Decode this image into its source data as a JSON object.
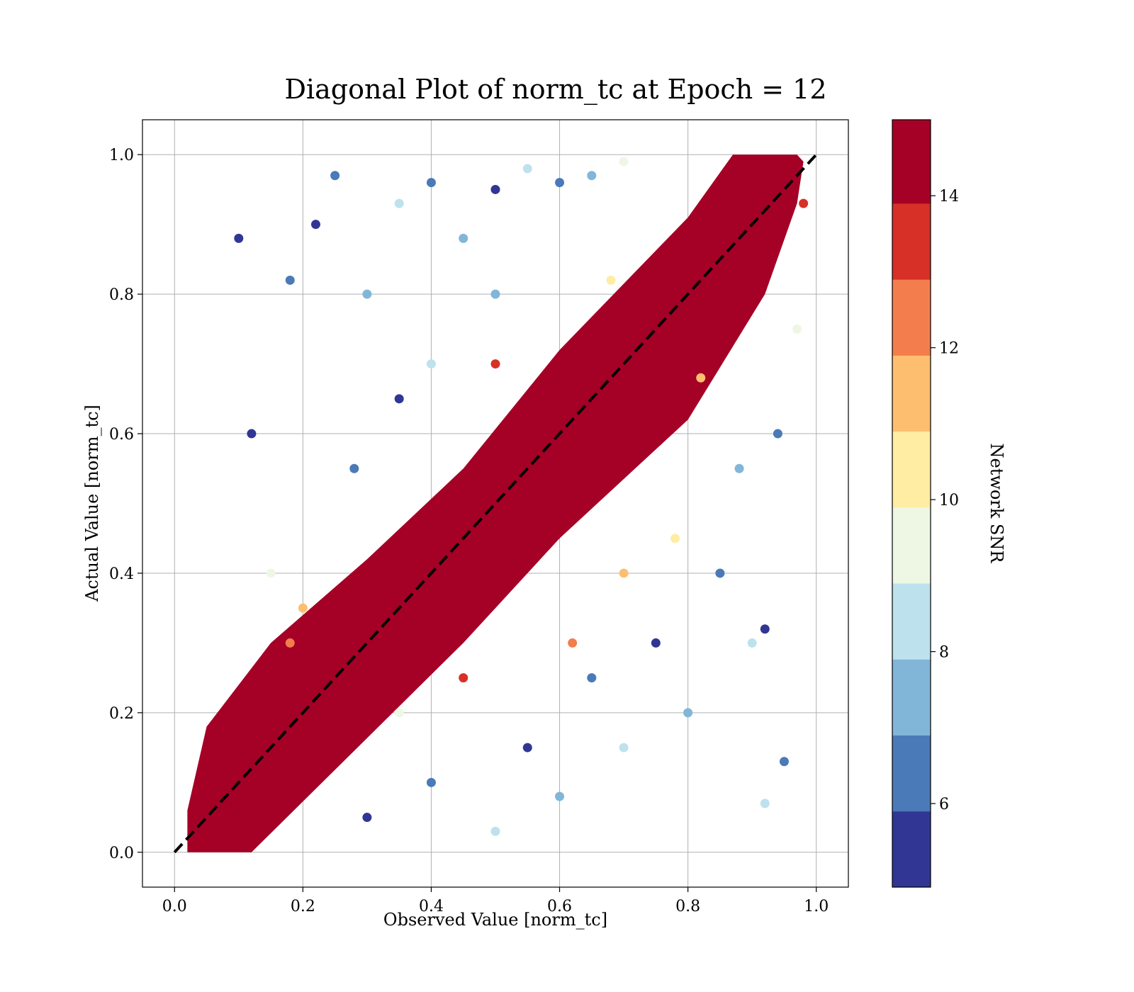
{
  "chart_data": {
    "type": "scatter",
    "title": "Diagonal Plot of norm_tc at Epoch = 12",
    "xlabel": "Observed Value [norm_tc]",
    "ylabel": "Actual Value [norm_tc]",
    "xlim": [
      -0.05,
      1.05
    ],
    "ylim": [
      -0.05,
      1.05
    ],
    "xticks": [
      "0.0",
      "0.2",
      "0.4",
      "0.6",
      "0.8",
      "1.0"
    ],
    "yticks": [
      "0.0",
      "0.2",
      "0.4",
      "0.6",
      "0.8",
      "1.0"
    ],
    "grid": true,
    "reference_line": {
      "style": "dashed",
      "color": "#000000",
      "from": [
        0,
        0
      ],
      "to": [
        1,
        1
      ]
    },
    "point_color_scale": "#page-data.colorbar",
    "points": [
      [
        0.05,
        0.03,
        15
      ],
      [
        0.1,
        0.08,
        15
      ],
      [
        0.15,
        0.14,
        15
      ],
      [
        0.2,
        0.19,
        15
      ],
      [
        0.25,
        0.24,
        15
      ],
      [
        0.3,
        0.3,
        15
      ],
      [
        0.35,
        0.34,
        15
      ],
      [
        0.4,
        0.41,
        15
      ],
      [
        0.45,
        0.44,
        15
      ],
      [
        0.5,
        0.5,
        15
      ],
      [
        0.55,
        0.56,
        15
      ],
      [
        0.6,
        0.59,
        15
      ],
      [
        0.65,
        0.65,
        15
      ],
      [
        0.7,
        0.7,
        15
      ],
      [
        0.75,
        0.74,
        15
      ],
      [
        0.8,
        0.81,
        15
      ],
      [
        0.85,
        0.85,
        15
      ],
      [
        0.9,
        0.9,
        15
      ],
      [
        0.95,
        0.94,
        15
      ],
      [
        0.1,
        0.88,
        5.5
      ],
      [
        0.12,
        0.6,
        5.8
      ],
      [
        0.18,
        0.82,
        6.2
      ],
      [
        0.22,
        0.9,
        5.3
      ],
      [
        0.25,
        0.97,
        6.5
      ],
      [
        0.3,
        0.8,
        7.2
      ],
      [
        0.35,
        0.93,
        8.4
      ],
      [
        0.4,
        0.96,
        6.1
      ],
      [
        0.45,
        0.88,
        7.6
      ],
      [
        0.5,
        0.95,
        5.9
      ],
      [
        0.55,
        0.98,
        8.8
      ],
      [
        0.6,
        0.96,
        6.8
      ],
      [
        0.65,
        0.97,
        7.4
      ],
      [
        0.7,
        0.99,
        9.2
      ],
      [
        0.35,
        0.65,
        5.6
      ],
      [
        0.28,
        0.55,
        6.9
      ],
      [
        0.4,
        0.7,
        8.1
      ],
      [
        0.5,
        0.8,
        7.0
      ],
      [
        0.15,
        0.4,
        9.5
      ],
      [
        0.3,
        0.05,
        5.4
      ],
      [
        0.4,
        0.1,
        6.7
      ],
      [
        0.5,
        0.03,
        8.2
      ],
      [
        0.55,
        0.15,
        5.2
      ],
      [
        0.6,
        0.08,
        7.5
      ],
      [
        0.65,
        0.25,
        6.3
      ],
      [
        0.7,
        0.15,
        8.9
      ],
      [
        0.75,
        0.3,
        5.7
      ],
      [
        0.8,
        0.2,
        7.1
      ],
      [
        0.85,
        0.4,
        6.0
      ],
      [
        0.9,
        0.3,
        8.6
      ],
      [
        0.92,
        0.32,
        5.1
      ],
      [
        0.94,
        0.6,
        6.4
      ],
      [
        0.97,
        0.75,
        9.8
      ],
      [
        0.88,
        0.55,
        7.9
      ],
      [
        0.78,
        0.45,
        10.3
      ],
      [
        0.7,
        0.4,
        11.2
      ],
      [
        0.62,
        0.3,
        12.5
      ],
      [
        0.45,
        0.25,
        13.4
      ],
      [
        0.35,
        0.2,
        9.1
      ],
      [
        0.2,
        0.35,
        11.6
      ],
      [
        0.18,
        0.3,
        12.8
      ],
      [
        0.5,
        0.7,
        13.2
      ],
      [
        0.68,
        0.82,
        10.6
      ],
      [
        0.82,
        0.68,
        11.8
      ],
      [
        0.95,
        0.13,
        6.6
      ],
      [
        0.92,
        0.07,
        8.0
      ],
      [
        0.98,
        0.93,
        13.8
      ]
    ]
  },
  "colorbar": {
    "label": "Network SNR",
    "min": 4.9,
    "max": 15.0,
    "tick_labels": [
      "6",
      "8",
      "10",
      "12",
      "14"
    ],
    "tick_values": [
      6,
      8,
      10,
      12,
      14
    ],
    "bands": [
      {
        "from": 4.9,
        "to": 5.9,
        "color": "#313695"
      },
      {
        "from": 5.9,
        "to": 6.9,
        "color": "#4a7ab7"
      },
      {
        "from": 6.9,
        "to": 7.9,
        "color": "#82b6d8"
      },
      {
        "from": 7.9,
        "to": 8.9,
        "color": "#bde2ee"
      },
      {
        "from": 8.9,
        "to": 9.9,
        "color": "#eef7e3"
      },
      {
        "from": 9.9,
        "to": 10.9,
        "color": "#feeda3"
      },
      {
        "from": 10.9,
        "to": 11.9,
        "color": "#fdbf6f"
      },
      {
        "from": 11.9,
        "to": 12.9,
        "color": "#f47d4d"
      },
      {
        "from": 12.9,
        "to": 13.9,
        "color": "#d73027"
      },
      {
        "from": 13.9,
        "to": 15.0,
        "color": "#a50026"
      }
    ]
  }
}
